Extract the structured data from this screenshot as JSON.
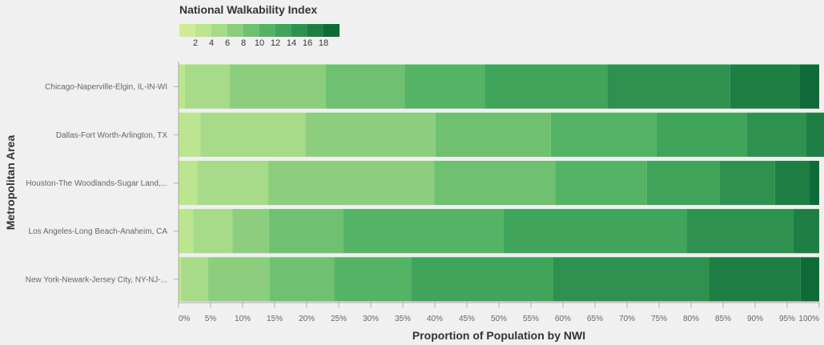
{
  "chart_data": {
    "type": "bar",
    "orientation": "horizontal",
    "stacked": true,
    "normalized": true,
    "xlabel": "Proportion of Population by NWI",
    "ylabel": "Metropolitan Area",
    "xlim": [
      0,
      100
    ],
    "x_ticks": [
      "0%",
      "5%",
      "10%",
      "15%",
      "20%",
      "25%",
      "30%",
      "35%",
      "40%",
      "45%",
      "50%",
      "55%",
      "60%",
      "65%",
      "70%",
      "75%",
      "80%",
      "85%",
      "90%",
      "95%",
      "100%"
    ],
    "legend": {
      "title": "National Walkability Index",
      "placement": "top-left",
      "tick_labels": [
        "2",
        "4",
        "6",
        "8",
        "10",
        "12",
        "14",
        "16",
        "18"
      ]
    },
    "colors": [
      "#d0eb98",
      "#bde490",
      "#a7da89",
      "#8dce7e",
      "#70c072",
      "#55b366",
      "#40a45b",
      "#2f9150",
      "#1e7e44",
      "#0e6a37"
    ],
    "categories": [
      "Chicago-Naperville-Elgin, IL-IN-WI",
      "Dallas-Fort Worth-Arlington, TX",
      "Houston-The Woodlands-Sugar Land,...",
      "Los Angeles-Long Beach-Anaheim, CA",
      "New York-Newark-Jersey City, NY-NJ-..."
    ],
    "values": [
      [
        0,
        1.0,
        7.0,
        15.0,
        12.3,
        12.5,
        19.2,
        19.1,
        10.8,
        3.1
      ],
      [
        0,
        3.4,
        16.4,
        20.3,
        18.0,
        16.5,
        14.1,
        9.2,
        4.6,
        1.5
      ],
      [
        0,
        2.9,
        11.1,
        25.9,
        18.9,
        14.3,
        11.3,
        8.7,
        5.4,
        1.5
      ],
      [
        0,
        2.3,
        6.1,
        5.7,
        11.6,
        25.0,
        28.6,
        16.6,
        4.1,
        0
      ],
      [
        0,
        0.4,
        4.2,
        9.6,
        10.1,
        12.0,
        22.2,
        24.3,
        14.3,
        2.9
      ]
    ]
  }
}
